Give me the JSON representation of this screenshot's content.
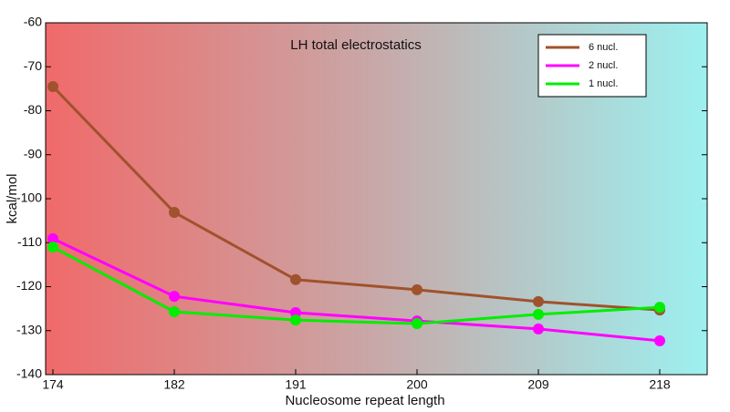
{
  "chart_data": {
    "type": "line",
    "title": "LH total electrostatics",
    "x_label": "Nucleosome repeat length",
    "y_label": "kcal/mol",
    "categories": [
      "174",
      "182",
      "191",
      "200",
      "209",
      "218"
    ],
    "series": [
      {
        "name": "6 nucl.",
        "color": "#a0522d",
        "values": [
          -74.5,
          -103.1,
          -118.4,
          -120.7,
          -123.4,
          -125.3
        ]
      },
      {
        "name": "2 nucl.",
        "color": "#ff00ff",
        "values": [
          -109.1,
          -122.2,
          -125.9,
          -127.8,
          -129.6,
          -132.3
        ]
      },
      {
        "name": "1 nucl.",
        "color": "#00ee00",
        "values": [
          -111,
          -125.7,
          -127.6,
          -128.4,
          -126.3,
          -124.7
        ]
      }
    ],
    "ylim": [
      -140,
      -60
    ],
    "yticks": [
      -60,
      -70,
      -80,
      -90,
      -100,
      -110,
      -120,
      -130,
      -140
    ],
    "legend": "upper right"
  }
}
